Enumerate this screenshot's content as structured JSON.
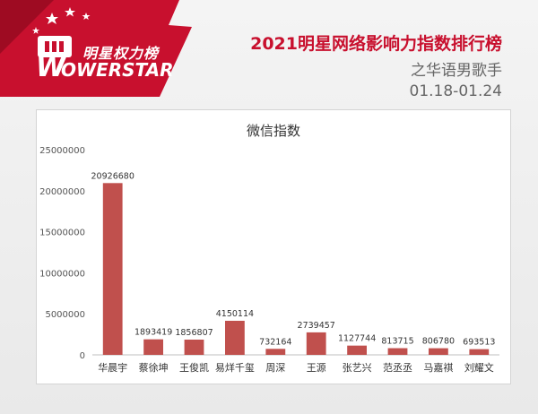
{
  "header": {
    "logo_text_cn": "明星权力榜",
    "logo_text_en": "OWERSTAR",
    "logo_mark": "W",
    "title": "2021明星网络影响力指数排行榜",
    "subtitle": "之华语男歌手",
    "date_range": "01.18-01.24"
  },
  "colors": {
    "brand_red": "#c8102e",
    "bar": "#c0504d"
  },
  "chart_data": {
    "type": "bar",
    "title": "微信指数",
    "categories": [
      "华晨宇",
      "蔡徐坤",
      "王俊凯",
      "易烊千玺",
      "周深",
      "王源",
      "张艺兴",
      "范丞丞",
      "马嘉祺",
      "刘耀文"
    ],
    "values": [
      20926680,
      1893419,
      1856807,
      4150114,
      732164,
      2739457,
      1127744,
      813715,
      806780,
      693513
    ],
    "value_labels": [
      "20926680",
      "1893419",
      "1856807",
      "4150114",
      "732164",
      "2739457",
      "1127744",
      "813715",
      "806780",
      "693513"
    ],
    "ylim": [
      0,
      25000000
    ],
    "y_ticks": [
      0,
      5000000,
      10000000,
      15000000,
      20000000,
      25000000
    ],
    "y_tick_labels": [
      "0",
      "5000000",
      "10000000",
      "15000000",
      "20000000",
      "25000000"
    ],
    "grid": false,
    "xlabel": "",
    "ylabel": ""
  }
}
